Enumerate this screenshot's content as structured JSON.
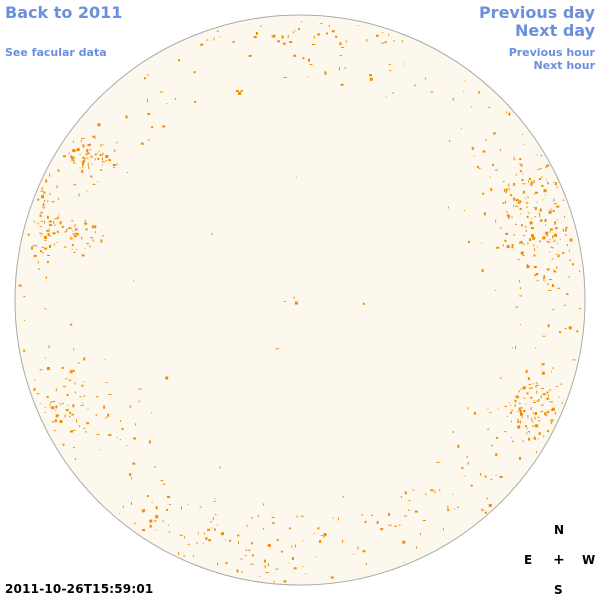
{
  "nav": {
    "back_year": "Back to 2011",
    "see_facular": "See facular data",
    "prev_day": "Previous day",
    "next_day": "Next day",
    "prev_hour": "Previous hour",
    "next_hour": "Next hour"
  },
  "timestamp": "2011-10-26T15:59:01",
  "compass": {
    "north": "N",
    "south": "S",
    "east": "E",
    "west": "W",
    "center": "+"
  },
  "colors": {
    "link": "#6a8fdc",
    "disk_fill": "#fdf8ee",
    "disk_border": "#aaaaaa",
    "facula": "#f08c00"
  },
  "facular_clusters": [
    {
      "region": "north-east-limb",
      "density": "medium"
    },
    {
      "region": "east-limb",
      "density": "medium"
    },
    {
      "region": "south-east-limb",
      "density": "medium"
    },
    {
      "region": "north-west-limb",
      "density": "high"
    },
    {
      "region": "south-west-limb",
      "density": "high"
    },
    {
      "region": "north-limb",
      "density": "low"
    },
    {
      "region": "south-limb",
      "density": "low"
    }
  ]
}
